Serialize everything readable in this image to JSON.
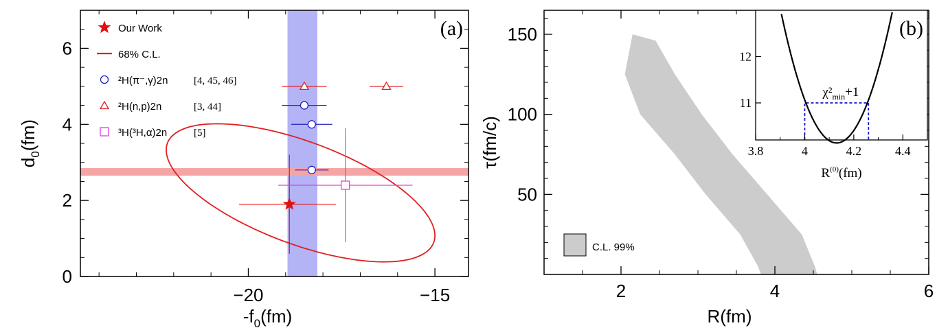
{
  "chart_data": [
    {
      "type": "scatter",
      "panel_tag": "(a)",
      "xlabel": "-f",
      "xlabel_sub": "0",
      "xlabel_unit": "(fm)",
      "ylabel": "d",
      "ylabel_sub": "0",
      "ylabel_unit": "(fm)",
      "xlim": [
        -24.5,
        -14.1
      ],
      "ylim": [
        0,
        7
      ],
      "xticks": [
        -20,
        -15
      ],
      "xtick_labels": [
        "−20",
        "−15"
      ],
      "yticks": [
        0,
        2,
        4,
        6
      ],
      "ytick_labels": [
        "0",
        "2",
        "4",
        "6"
      ],
      "vertical_band": {
        "x_min": -18.95,
        "x_max": -18.15,
        "color": "#b3b3f5"
      },
      "horizontal_band": {
        "y_min": 2.65,
        "y_max": 2.85,
        "color": "#f5a5a5"
      },
      "ellipse": {
        "cx": -18.6,
        "cy": 2.2,
        "semi_major": 3.8,
        "semi_minor": 1.35,
        "angle_deg": -20,
        "color": "#e02020"
      },
      "series": [
        {
          "name": "Our Work",
          "marker": "star",
          "color": "#e01010",
          "points": [
            {
              "x": -18.9,
              "y": 1.9,
              "xerr": [
                1.35,
                1.25
              ],
              "yerr": [
                1.3,
                1.3
              ]
            }
          ]
        },
        {
          "name": "²H(π⁻,γ)2n",
          "ref": "[4, 45, 46]",
          "marker": "circle",
          "color": "#2020c0",
          "points": [
            {
              "x": -18.5,
              "y": 4.5,
              "xerr": [
                0.6,
                0.6
              ],
              "yerr": [
                0,
                0
              ]
            },
            {
              "x": -18.3,
              "y": 4.0,
              "xerr": [
                0.55,
                0.55
              ],
              "yerr": [
                0,
                0
              ]
            },
            {
              "x": -18.3,
              "y": 2.8,
              "xerr": [
                0.45,
                0.45
              ],
              "yerr": [
                0,
                0
              ]
            }
          ]
        },
        {
          "name": "²H(n,p)2n",
          "ref": "[3, 44]",
          "marker": "triangle",
          "color": "#e02020",
          "points": [
            {
              "x": -18.5,
              "y": 5.0,
              "xerr": [
                0.6,
                0.6
              ],
              "yerr": [
                0,
                0
              ]
            },
            {
              "x": -16.3,
              "y": 5.0,
              "xerr": [
                0.45,
                0.45
              ],
              "yerr": [
                0,
                0
              ]
            }
          ]
        },
        {
          "name": "³H(³H,α)2n",
          "ref": "[5]",
          "marker": "square",
          "color": "#e040e0",
          "points": [
            {
              "x": -17.4,
              "y": 2.4,
              "xerr": [
                1.8,
                1.8
              ],
              "yerr": [
                1.5,
                1.5
              ]
            }
          ]
        }
      ],
      "legend": {
        "placement": "top-left",
        "entries": [
          {
            "label": "Our Work",
            "ref": "",
            "marker": "star",
            "color": "#e01010"
          },
          {
            "label": "68% C.L.",
            "ref": "",
            "marker": "line",
            "color": "#e02020"
          },
          {
            "label": "²H(π⁻,γ)2n",
            "ref": "[4, 45, 46]",
            "marker": "circle",
            "color": "#2020c0"
          },
          {
            "label": "²H(n,p)2n",
            "ref": "[3, 44]",
            "marker": "triangle",
            "color": "#e02020"
          },
          {
            "label": "³H(³H,α)2n",
            "ref": "[5]",
            "marker": "square",
            "color": "#e040e0"
          }
        ]
      }
    },
    {
      "type": "area",
      "panel_tag": "(b)",
      "xlabel": "R(fm)",
      "ylabel": "τ(fm/c)",
      "xlim": [
        1,
        6
      ],
      "ylim": [
        0,
        165
      ],
      "xticks": [
        2,
        4,
        6
      ],
      "xtick_labels": [
        "2",
        "4",
        "6"
      ],
      "yticks": [
        50,
        100,
        150
      ],
      "ytick_labels": [
        "50",
        "100",
        "150"
      ],
      "region_color": "#cccccc",
      "region_left": [
        [
          2.15,
          150
        ],
        [
          2.05,
          125
        ],
        [
          2.25,
          100
        ],
        [
          2.7,
          75
        ],
        [
          3.1,
          50
        ],
        [
          3.55,
          25
        ],
        [
          3.78,
          5
        ],
        [
          3.82,
          0
        ]
      ],
      "region_right": [
        [
          2.45,
          146
        ],
        [
          2.7,
          125
        ],
        [
          3.05,
          100
        ],
        [
          3.45,
          75
        ],
        [
          3.9,
          50
        ],
        [
          4.35,
          25
        ],
        [
          4.52,
          5
        ],
        [
          4.55,
          0
        ]
      ],
      "legend": {
        "placement": "bottom-left",
        "label": "C.L. 99%",
        "color": "#cccccc"
      },
      "inset": {
        "type": "line",
        "xlabel": "R",
        "xlabel_sup": "(0)",
        "xlabel_unit": "(fm)",
        "xlim": [
          3.8,
          4.5
        ],
        "ylim": [
          10.2,
          13.0
        ],
        "xticks": [
          3.8,
          4.0,
          4.2,
          4.4
        ],
        "xtick_labels": [
          "3.8",
          "4",
          "4.2",
          "4.4"
        ],
        "yticks": [
          11,
          12
        ],
        "ytick_labels": [
          "11",
          "12"
        ],
        "curve": {
          "x_min": 10.135,
          "x_center": 4.13,
          "coefficient": 55.0,
          "color": "#000000"
        },
        "chi_label": "χ²",
        "chi_sub": "min",
        "chi_suffix": "+1",
        "threshold": {
          "y": 11.0,
          "x_left": 4.0,
          "x_right": 4.26,
          "color": "#1010d0"
        }
      }
    }
  ]
}
